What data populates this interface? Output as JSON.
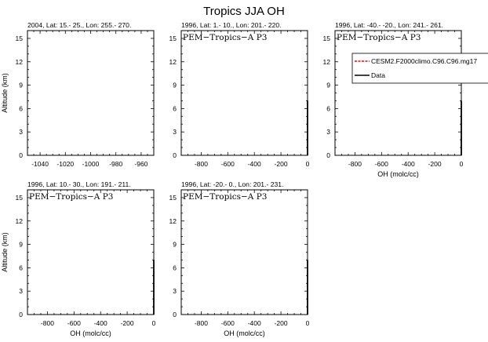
{
  "figure_title": "Tropics JJA OH",
  "chart_data": [
    {
      "type": "line",
      "title": "2004, Lat: 15.- 25., Lon: 255.- 270.",
      "annotation": "",
      "xlabel": "",
      "ylabel": "Altitude (km)",
      "xlim": [
        -1050,
        -950
      ],
      "xticks": [
        -1040,
        -1020,
        -1000,
        -980,
        -960
      ],
      "ylim": [
        0,
        16
      ],
      "yticks": [
        0,
        3,
        6,
        9,
        12,
        15
      ],
      "series": []
    },
    {
      "type": "line",
      "title": "1996, Lat: 1.- 10., Lon: 201.- 220.",
      "annotation": "PEM−Tropics−A P3",
      "xlabel": "",
      "ylabel": "",
      "xlim": [
        -950,
        0
      ],
      "xticks": [
        -800,
        -600,
        -400,
        -200,
        0
      ],
      "ylim": [
        0,
        16
      ],
      "yticks": [
        0,
        3,
        6,
        9,
        12,
        15
      ],
      "series": [
        {
          "name": "Data",
          "color": "#000000",
          "dash": "solid",
          "x": [
            0,
            0
          ],
          "y": [
            0,
            7
          ]
        }
      ]
    },
    {
      "type": "line",
      "title": "1996, Lat: -40.- -20., Lon: 241.- 261.",
      "annotation": "PEM−Tropics−A P3",
      "xlabel": "OH (molc/cc)",
      "ylabel": "",
      "xlim": [
        -950,
        0
      ],
      "xticks": [
        -800,
        -600,
        -400,
        -200,
        0
      ],
      "ylim": [
        0,
        16
      ],
      "yticks": [
        0,
        3,
        6,
        9,
        12,
        15
      ],
      "legend": {
        "placement": "top-right",
        "entries": [
          {
            "label": "CESM2.F2000climo.C96.C96.mg17",
            "color": "#ff0000",
            "dash": "dashed"
          },
          {
            "label": "Data",
            "color": "#000000",
            "dash": "solid"
          }
        ]
      },
      "series": [
        {
          "name": "Data",
          "color": "#000000",
          "dash": "solid",
          "x": [
            0,
            0
          ],
          "y": [
            0,
            7
          ]
        }
      ]
    },
    {
      "type": "line",
      "title": "1996, Lat: 10.- 30., Lon: 191.- 211.",
      "annotation": "PEM−Tropics−A P3",
      "xlabel": "OH (molc/cc)",
      "ylabel": "Altitude (km)",
      "xlim": [
        -950,
        0
      ],
      "xticks": [
        -800,
        -600,
        -400,
        -200,
        0
      ],
      "ylim": [
        0,
        16
      ],
      "yticks": [
        0,
        3,
        6,
        9,
        12,
        15
      ],
      "series": [
        {
          "name": "Data",
          "color": "#000000",
          "dash": "solid",
          "x": [
            0,
            0
          ],
          "y": [
            0,
            7
          ]
        }
      ]
    },
    {
      "type": "line",
      "title": "1996, Lat: -20.- 0., Lon: 201.- 231.",
      "annotation": "PEM−Tropics−A P3",
      "xlabel": "OH (molc/cc)",
      "ylabel": "",
      "xlim": [
        -950,
        0
      ],
      "xticks": [
        -800,
        -600,
        -400,
        -200,
        0
      ],
      "ylim": [
        0,
        16
      ],
      "yticks": [
        0,
        3,
        6,
        9,
        12,
        15
      ],
      "series": [
        {
          "name": "Data",
          "color": "#000000",
          "dash": "solid",
          "x": [
            0,
            0
          ],
          "y": [
            0,
            7
          ]
        }
      ]
    }
  ]
}
